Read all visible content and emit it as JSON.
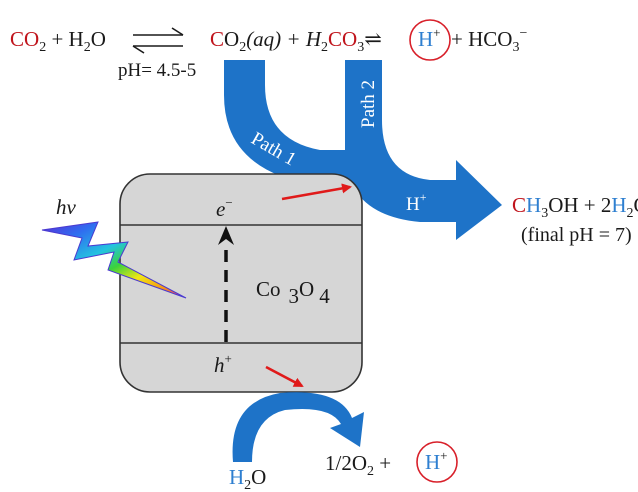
{
  "equation": {
    "co2_left": "CO",
    "co2_left_sub": "2",
    "plus1": " + H",
    "h2o_sub": "2",
    "o1": "O",
    "co2aq_c": "C",
    "co2aq_o": "O",
    "co2aq_sub": "2",
    "co2aq_aq": "(aq) + H",
    "h2co3_h_sub": "2",
    "h2co3_co": "CO",
    "h2co3_sub": "3",
    "eq_arrow": "⇌",
    "h_plus": "H",
    "h_plus_sup": "+",
    "plus_hco3_hco": " + HCO",
    "hco3_sub": "3",
    "hco3_sup": "−",
    "ph_label": "pH= 4.5-5"
  },
  "paths": {
    "path1": "Path 1",
    "path2": "Path 2",
    "h_plus": "H",
    "h_plus_sup": "+"
  },
  "product": {
    "ch3oh_c": "C",
    "ch3oh_h": "H",
    "ch3oh_sub": "3",
    "ch3oh_oh": "OH + 2",
    "h2o_h": "H",
    "h2o_sub": "2",
    "h2o_o": "O",
    "final_ph": "(final pH = 7)"
  },
  "light": {
    "label": "hv"
  },
  "semiconductor": {
    "electron": "e",
    "electron_sup": "−",
    "hole": "h",
    "hole_sup": "+",
    "name_co": "Co",
    "name_3": "3",
    "name_o": "O",
    "name_4": "4"
  },
  "oxidation": {
    "water_h": "H",
    "water_sub": "2",
    "water_o": "O",
    "o2_text": "1/2O",
    "o2_sub": "2",
    "plus": " +",
    "h_plus": "H",
    "h_plus_sup": "+"
  },
  "colors": {
    "blue_arrow": "#1e73c8",
    "red_arrow": "#e01a1a",
    "red_text": "#c0141c",
    "blue_text": "#2e7fd0",
    "box_fill": "#d6d6d6"
  }
}
